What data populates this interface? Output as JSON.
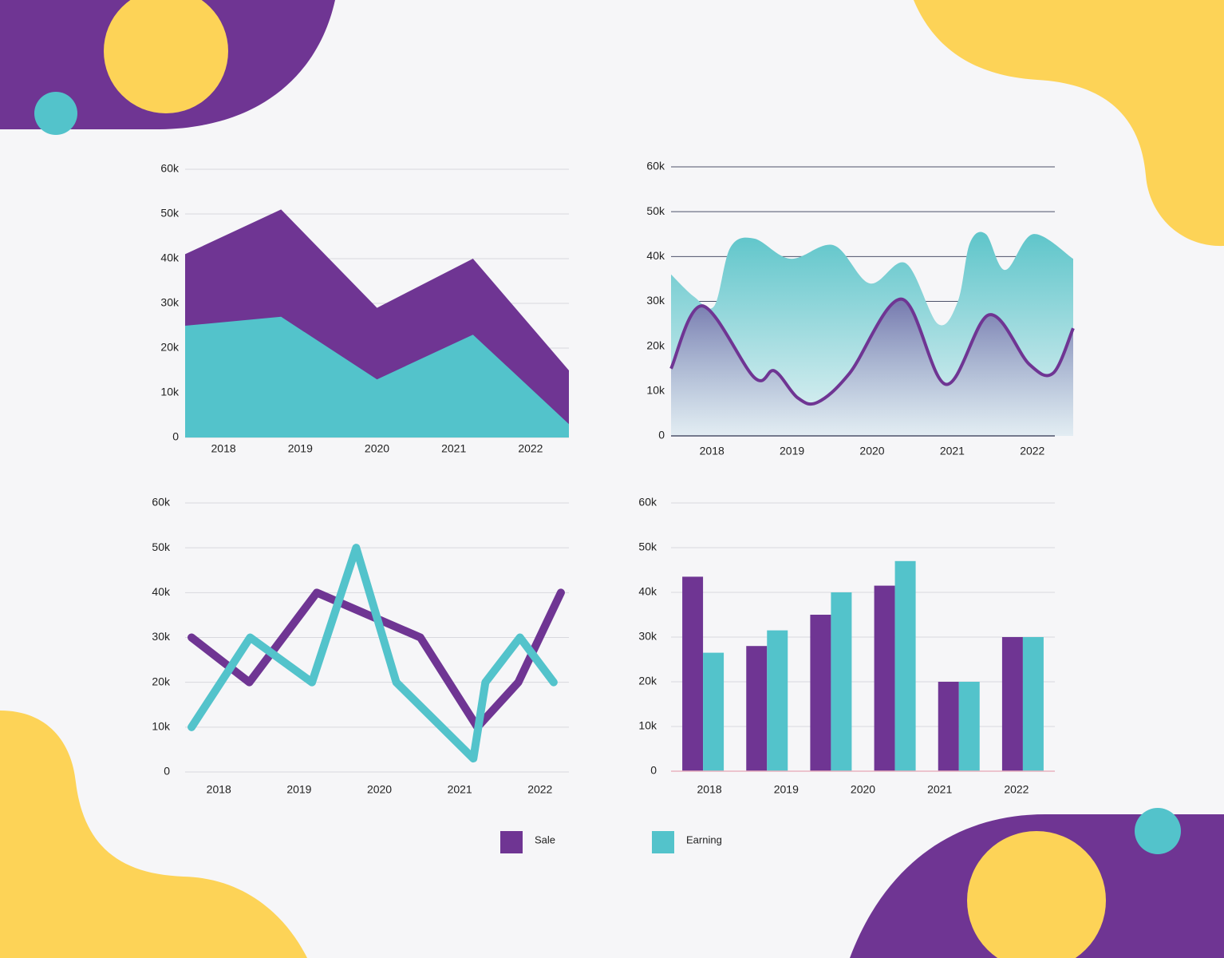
{
  "chart_data": [
    {
      "type": "area",
      "categories": [
        "2018",
        "2019",
        "2020",
        "2021",
        "2022"
      ],
      "series": [
        {
          "color": "#6f3593",
          "values": [
            41000,
            51000,
            29000,
            40000,
            15000
          ]
        },
        {
          "color": "#53c3cb",
          "values": [
            25000,
            27000,
            13000,
            23000,
            3000
          ]
        }
      ],
      "ylim": [
        0,
        60000
      ],
      "yticks": [
        0,
        {
          "value": 10000,
          "label": "10k"
        },
        {
          "value": 20000,
          "label": "20k"
        },
        {
          "value": 30000,
          "label": "30k"
        },
        {
          "value": 40000,
          "label": "40k"
        },
        {
          "value": 50000,
          "label": "50k"
        },
        {
          "value": 60000,
          "label": "60k"
        }
      ],
      "grid": true
    },
    {
      "type": "smooth",
      "xlim": [
        2017.49,
        2022.51
      ],
      "xticks": [
        2018,
        2019,
        2020,
        2021,
        2022
      ],
      "series": [
        {
          "kind": "area",
          "color": "#53c3cb",
          "x": [
            2017.49,
            2017.78,
            2018.03,
            2018.23,
            2018.53,
            2018.98,
            2019.52,
            2019.97,
            2020.42,
            2020.82,
            2021.07,
            2021.22,
            2021.42,
            2021.66,
            2022.01,
            2022.51
          ],
          "values": [
            36000,
            31000,
            29000,
            42000,
            44000,
            39500,
            42500,
            34000,
            38500,
            25000,
            30000,
            43000,
            45000,
            37000,
            45000,
            39500
          ]
        },
        {
          "kind": "line",
          "color": "#6f3593",
          "x": [
            2017.49,
            2017.88,
            2018.53,
            2018.78,
            2019.07,
            2019.32,
            2019.72,
            2020.37,
            2020.92,
            2021.46,
            2021.96,
            2022.26,
            2022.51
          ],
          "values": [
            15000,
            29000,
            13000,
            14500,
            8500,
            7500,
            14000,
            30500,
            11500,
            27000,
            16000,
            14000,
            24000
          ]
        }
      ],
      "ylim": [
        0,
        60000
      ],
      "yticks": [
        0,
        {
          "value": 10000,
          "label": "10k"
        },
        {
          "value": 20000,
          "label": "20k"
        },
        {
          "value": 30000,
          "label": "30k"
        },
        {
          "value": 40000,
          "label": "40k"
        },
        {
          "value": 50000,
          "label": "50k"
        },
        {
          "value": 60000,
          "label": "60k"
        }
      ],
      "grid": true
    },
    {
      "type": "line",
      "xlim": [
        2017.58,
        2022.36
      ],
      "xticks": [
        2018,
        2019,
        2020,
        2021,
        2022
      ],
      "series": [
        {
          "color": "#6f3593",
          "x": [
            2017.66,
            2018.38,
            2019.22,
            2020.51,
            2021.22,
            2021.73,
            2022.26
          ],
          "values": [
            30000,
            20000,
            40000,
            30000,
            10000,
            20000,
            40000
          ]
        },
        {
          "color": "#53c3cb",
          "x": [
            2017.66,
            2018.39,
            2019.16,
            2019.71,
            2020.21,
            2021.17,
            2021.32,
            2021.75,
            2022.17
          ],
          "values": [
            10000,
            30000,
            20000,
            50000,
            20000,
            3000,
            20000,
            30000,
            20000
          ]
        }
      ],
      "ylim": [
        0,
        60000
      ],
      "yticks": [
        0,
        {
          "value": 10000,
          "label": "10k"
        },
        {
          "value": 20000,
          "label": "20k"
        },
        {
          "value": 30000,
          "label": "30k"
        },
        {
          "value": 40000,
          "label": "40k"
        },
        {
          "value": 50000,
          "label": "50k"
        },
        {
          "value": 60000,
          "label": "60k"
        }
      ],
      "grid": true
    },
    {
      "type": "bar",
      "categories": [
        "2018",
        "2019",
        "2020",
        null,
        "2021",
        "2022"
      ],
      "series": [
        {
          "name": "Sale",
          "color": "#6f3593",
          "values": [
            43500,
            28000,
            35000,
            41500,
            20000,
            30000
          ]
        },
        {
          "name": "Earning",
          "color": "#53c3cb",
          "values": [
            26500,
            31500,
            40000,
            47000,
            20000,
            30000
          ]
        }
      ],
      "ylim": [
        0,
        60000
      ],
      "yticks": [
        0,
        {
          "value": 10000,
          "label": "10k"
        },
        {
          "value": 20000,
          "label": "20k"
        },
        {
          "value": 30000,
          "label": "30k"
        },
        {
          "value": 40000,
          "label": "40k"
        },
        {
          "value": 50000,
          "label": "50k"
        },
        {
          "value": 60000,
          "label": "60k"
        }
      ],
      "grid": true
    }
  ]
}
